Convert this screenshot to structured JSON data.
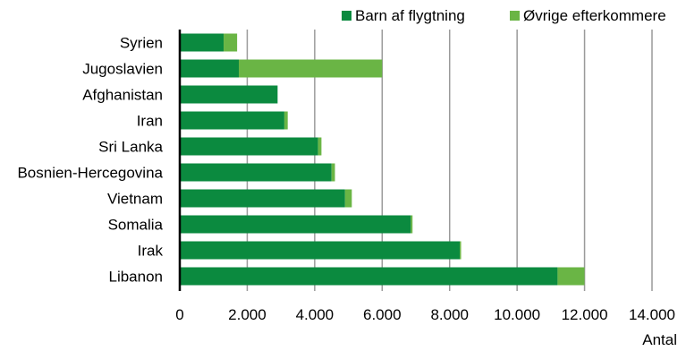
{
  "chart_data": {
    "type": "bar",
    "orientation": "horizontal",
    "stacked": true,
    "categories": [
      "Syrien",
      "Jugoslavien",
      "Afghanistan",
      "Iran",
      "Sri Lanka",
      "Bosnien-Hercegovina",
      "Vietnam",
      "Somalia",
      "Irak",
      "Libanon"
    ],
    "series": [
      {
        "name": "Barn af flygtning",
        "color": "#0b8a3f",
        "values": [
          1300,
          1750,
          2900,
          3100,
          4100,
          4500,
          4900,
          6850,
          8300,
          11200
        ]
      },
      {
        "name": "Øvrige efterkommere",
        "color": "#6ab545",
        "values": [
          400,
          4250,
          0,
          100,
          100,
          100,
          200,
          50,
          40,
          800
        ]
      }
    ],
    "xlim": [
      0,
      14000
    ],
    "xticks": [
      0,
      2000,
      4000,
      6000,
      8000,
      10000,
      12000,
      14000
    ],
    "xtick_labels": [
      "0",
      "2.000",
      "4.000",
      "6.000",
      "8.000",
      "10.000",
      "12.000",
      "14.000"
    ],
    "xlabel": "Antal",
    "ylabel": "",
    "title": "",
    "grid": "vertical",
    "legend": "top-right"
  }
}
